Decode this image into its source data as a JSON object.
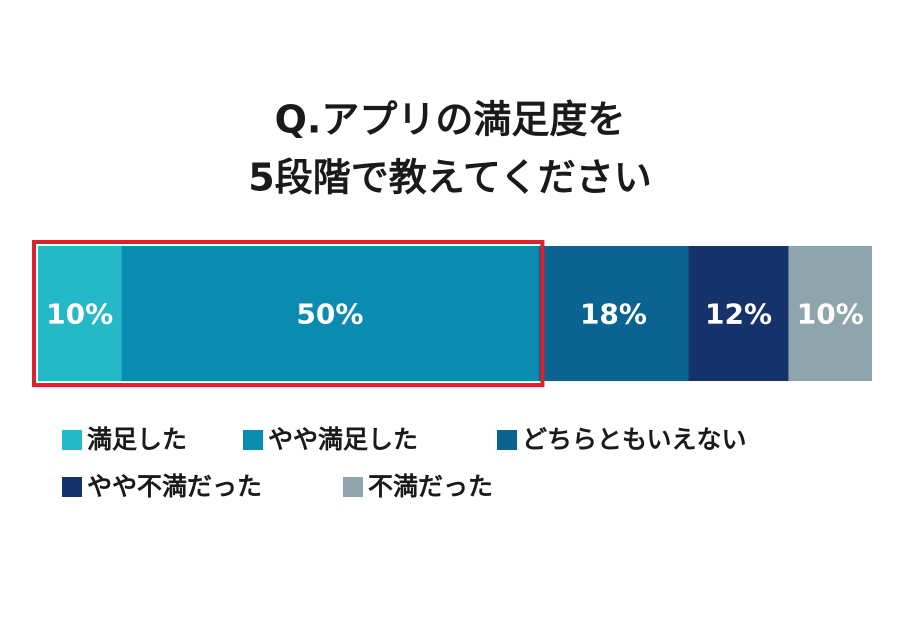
{
  "chart_data": {
    "type": "stacked-bar-100",
    "title": [
      "Q.アプリの満足度を",
      "5段階で教えてください"
    ],
    "series": [
      {
        "name": "満足した",
        "color": "#25b9c8",
        "values": [
          10
        ],
        "value_labels": [
          "10%"
        ]
      },
      {
        "name": "やや満足した",
        "color": "#0a8cb0",
        "values": [
          50
        ],
        "value_labels": [
          "50%"
        ]
      },
      {
        "name": "どちらともいえない",
        "color": "#0b6391",
        "values": [
          18
        ],
        "value_labels": [
          "18%"
        ]
      },
      {
        "name": "やや不満だった",
        "color": "#15336a",
        "values": [
          12
        ],
        "value_labels": [
          "12%"
        ]
      },
      {
        "name": "不満だった",
        "color": "#8ea5ad",
        "values": [
          10
        ],
        "value_labels": [
          "10%"
        ]
      }
    ]
  }
}
